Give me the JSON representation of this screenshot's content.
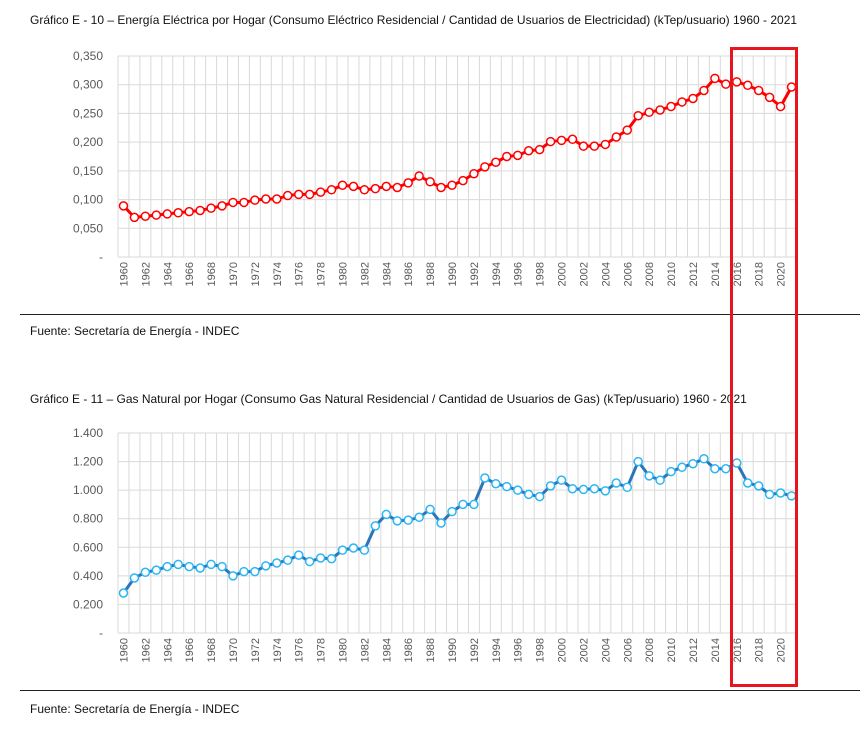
{
  "chart_data": [
    {
      "type": "line",
      "title": "Gráfico E - 10 – Energía Eléctrica por Hogar (Consumo Eléctrico Residencial / Cantidad de Usuarios de Electricidad) (kTep/usuario) 1960 - 2021",
      "source": "Fuente: Secretaría de Energía - INDEC",
      "xlabel": "",
      "ylabel": "",
      "ylim": [
        0,
        0.35
      ],
      "yticks": [
        "-",
        "0,050",
        "0,100",
        "0,150",
        "0,200",
        "0,250",
        "0,300",
        "0,350"
      ],
      "x_start": 1960,
      "x_end": 2021,
      "color": "#ff0000",
      "grid": true,
      "values": [
        0.089,
        0.069,
        0.071,
        0.073,
        0.075,
        0.077,
        0.079,
        0.081,
        0.085,
        0.089,
        0.095,
        0.095,
        0.099,
        0.101,
        0.101,
        0.107,
        0.109,
        0.109,
        0.113,
        0.117,
        0.125,
        0.123,
        0.117,
        0.119,
        0.123,
        0.121,
        0.129,
        0.141,
        0.131,
        0.121,
        0.125,
        0.133,
        0.145,
        0.157,
        0.165,
        0.175,
        0.177,
        0.185,
        0.187,
        0.201,
        0.203,
        0.205,
        0.193,
        0.193,
        0.196,
        0.209,
        0.221,
        0.246,
        0.252,
        0.256,
        0.262,
        0.27,
        0.276,
        0.29,
        0.311,
        0.301,
        0.305,
        0.299,
        0.29,
        0.278,
        0.262,
        0.296
      ]
    },
    {
      "type": "line",
      "title": "Gráfico E - 11 – Gas Natural por Hogar (Consumo Gas Natural Residencial / Cantidad de Usuarios de Gas) (kTep/usuario) 1960 - 2021",
      "source": "Fuente: Secretaría de Energía - INDEC",
      "xlabel": "",
      "ylabel": "",
      "ylim": [
        0,
        1.4
      ],
      "yticks": [
        "-",
        "0.200",
        "0.400",
        "0.600",
        "0.800",
        "1.000",
        "1.200",
        "1.400"
      ],
      "x_start": 1960,
      "x_end": 2021,
      "color": "#2e75b6",
      "marker_color": "#29b6f6",
      "grid": true,
      "values": [
        0.28,
        0.385,
        0.425,
        0.44,
        0.465,
        0.48,
        0.465,
        0.455,
        0.48,
        0.465,
        0.4,
        0.43,
        0.43,
        0.47,
        0.49,
        0.51,
        0.545,
        0.5,
        0.525,
        0.52,
        0.58,
        0.595,
        0.58,
        0.75,
        0.83,
        0.785,
        0.79,
        0.81,
        0.865,
        0.77,
        0.85,
        0.9,
        0.9,
        1.085,
        1.045,
        1.025,
        1.0,
        0.97,
        0.955,
        1.03,
        1.07,
        1.01,
        1.005,
        1.01,
        0.995,
        1.05,
        1.02,
        1.2,
        1.1,
        1.07,
        1.13,
        1.16,
        1.185,
        1.22,
        1.15,
        1.15,
        1.19,
        1.05,
        1.03,
        0.97,
        0.98,
        0.96
      ]
    }
  ],
  "highlight": {
    "years": [
      2016,
      2021
    ],
    "color": "#e8151f"
  }
}
